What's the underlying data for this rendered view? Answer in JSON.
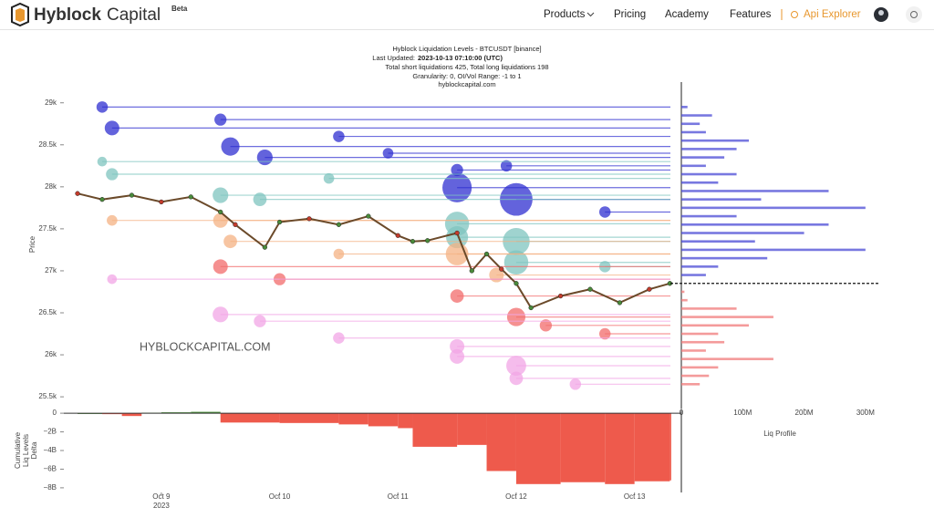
{
  "header": {
    "brand_1": "Hyblock",
    "brand_2": "Capital",
    "badge": "Beta",
    "nav": [
      "Products",
      "Pricing",
      "Academy",
      "Features"
    ],
    "api": "Api Explorer"
  },
  "chart_data": [
    {
      "type": "liquidation-levels",
      "title": "Hyblock Liquidation Levels - BTCUSDT [binance]",
      "last_updated_label": "Last Updated:",
      "last_updated": "2023-10-13 07:10:00 (UTC)",
      "totals": "Total short liquidations 425, Total long liquidations 198",
      "settings": "Granularity: 0, OI/Vol Range: -1 to 1",
      "source": "hyblockcapital.com",
      "watermark": "HYBLOCKCAPITAL.COM",
      "ylabel": "Price",
      "xlim": [
        "2023-10-08T07:00",
        "2023-10-13T09:30"
      ],
      "ylim": [
        25360,
        29160
      ],
      "yticks": [
        {
          "value": 25500,
          "label": "25.5k"
        },
        {
          "value": 26000,
          "label": "26k"
        },
        {
          "value": 26500,
          "label": "26.5k"
        },
        {
          "value": 27000,
          "label": "27k"
        },
        {
          "value": 27500,
          "label": "27.5k"
        },
        {
          "value": 28000,
          "label": "28k"
        },
        {
          "value": 28500,
          "label": "28.5k"
        },
        {
          "value": 29000,
          "label": "29k"
        }
      ],
      "current_price": 26850,
      "price": {
        "color": "#6b4a2a",
        "x": [
          "2023-10-08T07:00",
          "2023-10-08T12:00",
          "2023-10-08T18:00",
          "2023-10-09T00:00",
          "2023-10-09T06:00",
          "2023-10-09T12:00",
          "2023-10-09T15:00",
          "2023-10-09T21:00",
          "2023-10-10T00:00",
          "2023-10-10T06:00",
          "2023-10-10T12:00",
          "2023-10-10T18:00",
          "2023-10-11T00:00",
          "2023-10-11T03:00",
          "2023-10-11T06:00",
          "2023-10-11T12:00",
          "2023-10-11T15:00",
          "2023-10-11T18:00",
          "2023-10-11T21:00",
          "2023-10-12T00:00",
          "2023-10-12T03:00",
          "2023-10-12T09:00",
          "2023-10-12T15:00",
          "2023-10-12T21:00",
          "2023-10-13T03:00",
          "2023-10-13T07:10"
        ],
        "values": [
          27920,
          27850,
          27900,
          27820,
          27880,
          27700,
          27550,
          27280,
          27580,
          27620,
          27550,
          27650,
          27420,
          27350,
          27360,
          27450,
          27000,
          27200,
          27020,
          26850,
          26560,
          26700,
          26780,
          26620,
          26780,
          26850
        ]
      },
      "series": [
        {
          "color": "#2f2fd0",
          "x": [
            "2023-10-08T12:00",
            "2023-10-08T14:00",
            "2023-10-09T12:00",
            "2023-10-09T14:00",
            "2023-10-09T21:00",
            "2023-10-10T12:00",
            "2023-10-10T22:00",
            "2023-10-11T12:00",
            "2023-10-11T12:00",
            "2023-10-11T22:00",
            "2023-10-12T00:00",
            "2023-10-12T18:00"
          ],
          "values": [
            28950,
            28700,
            28800,
            28480,
            28350,
            28600,
            28400,
            28200,
            27990,
            28250,
            27850,
            27700
          ],
          "sizes": [
            5,
            10,
            6,
            18,
            12,
            5,
            4,
            6,
            55,
            5,
            70,
            5
          ]
        },
        {
          "color": "#7fc4bf",
          "x": [
            "2023-10-08T12:00",
            "2023-10-08T14:00",
            "2023-10-09T12:00",
            "2023-10-09T20:00",
            "2023-10-10T10:00",
            "2023-10-11T12:00",
            "2023-10-11T12:00",
            "2023-10-12T00:00",
            "2023-10-12T00:00",
            "2023-10-12T18:00"
          ],
          "values": [
            28300,
            28150,
            27900,
            27850,
            28100,
            27560,
            27400,
            27350,
            27100,
            27050
          ],
          "sizes": [
            3,
            6,
            12,
            8,
            4,
            35,
            28,
            45,
            35,
            5
          ]
        },
        {
          "color": "#f4b183",
          "x": [
            "2023-10-08T14:00",
            "2023-10-09T12:00",
            "2023-10-09T14:00",
            "2023-10-10T12:00",
            "2023-10-11T12:00",
            "2023-10-11T20:00"
          ],
          "values": [
            27600,
            27600,
            27350,
            27200,
            27200,
            26950
          ],
          "sizes": [
            4,
            10,
            8,
            4,
            30,
            10
          ]
        },
        {
          "color": "#f26b6b",
          "x": [
            "2023-10-09T12:00",
            "2023-10-10T00:00",
            "2023-10-11T12:00",
            "2023-10-12T00:00",
            "2023-10-12T06:00",
            "2023-10-12T18:00"
          ],
          "values": [
            27050,
            26900,
            26700,
            26450,
            26350,
            26250
          ],
          "sizes": [
            10,
            6,
            8,
            18,
            6,
            5
          ]
        },
        {
          "color": "#f2a6e6",
          "x": [
            "2023-10-08T14:00",
            "2023-10-09T12:00",
            "2023-10-09T20:00",
            "2023-10-10T12:00",
            "2023-10-11T12:00",
            "2023-10-11T12:00",
            "2023-10-12T00:00",
            "2023-10-12T00:00",
            "2023-10-12T12:00"
          ],
          "values": [
            26900,
            26480,
            26400,
            26200,
            26100,
            25980,
            25870,
            25720,
            25650
          ],
          "sizes": [
            3,
            12,
            6,
            5,
            10,
            10,
            22,
            8,
            5
          ]
        }
      ]
    },
    {
      "type": "hbar",
      "xlabel": "Liq Profile",
      "ylim": [
        25360,
        29160
      ],
      "xlim": [
        0,
        324000000
      ],
      "xticks": [
        0,
        {
          "value": 100000000,
          "label": "100M"
        },
        {
          "value": 200000000,
          "label": "200M"
        },
        {
          "value": 300000000,
          "label": "300M"
        }
      ],
      "categories": [
        25650,
        25750,
        25850,
        25950,
        26050,
        26150,
        26250,
        26350,
        26450,
        26550,
        26650,
        26750,
        26950,
        27050,
        27150,
        27250,
        27350,
        27450,
        27550,
        27650,
        27750,
        27850,
        27950,
        28050,
        28150,
        28250,
        28350,
        28450,
        28550,
        28650,
        28750,
        28850,
        28950
      ],
      "series": [
        {
          "color": "#4b4bd6",
          "values": [
            null,
            null,
            null,
            null,
            null,
            null,
            null,
            null,
            null,
            null,
            null,
            null,
            40000000,
            60000000,
            140000000,
            300000000,
            120000000,
            200000000,
            240000000,
            90000000,
            300000000,
            130000000,
            240000000,
            60000000,
            90000000,
            40000000,
            70000000,
            90000000,
            110000000,
            40000000,
            30000000,
            50000000,
            10000000
          ]
        },
        {
          "color": "#f07a7a",
          "values": [
            30000000,
            45000000,
            60000000,
            150000000,
            40000000,
            70000000,
            60000000,
            110000000,
            150000000,
            90000000,
            10000000,
            5000000,
            null,
            null,
            null,
            null,
            null,
            null,
            null,
            null,
            null,
            null,
            null,
            null,
            null,
            null,
            null,
            null,
            null,
            null,
            null,
            null,
            null
          ]
        }
      ]
    },
    {
      "type": "delta-area",
      "ylabel": [
        "Cumulative",
        "Liq Levels",
        "Delta"
      ],
      "xlim": [
        "2023-10-08T07:00",
        "2023-10-13T09:30"
      ],
      "ylim": [
        -8500000000,
        500000000
      ],
      "yticks": [
        0,
        {
          "value": -2000000000,
          "label": "−2B"
        },
        {
          "value": -4000000000,
          "label": "−4B"
        },
        {
          "value": -6000000000,
          "label": "−6B"
        },
        {
          "value": -8000000000,
          "label": "−8B"
        }
      ],
      "xticks": [
        {
          "value": "2023-10-09",
          "label": "Oct 9"
        },
        {
          "value": "2023-10-10",
          "label": "Oct 10"
        },
        {
          "value": "2023-10-11",
          "label": "Oct 11"
        },
        {
          "value": "2023-10-12",
          "label": "Oct 12"
        },
        {
          "value": "2023-10-13",
          "label": "Oct 13"
        }
      ],
      "x_year_label": "2023",
      "positive_color": "#4c8f3c",
      "negative_color": "#ee5a4c",
      "x": [
        "2023-10-08T07:00",
        "2023-10-08T12:00",
        "2023-10-08T16:00",
        "2023-10-08T20:00",
        "2023-10-09T00:00",
        "2023-10-09T06:00",
        "2023-10-09T12:00",
        "2023-10-10T00:00",
        "2023-10-10T12:00",
        "2023-10-10T18:00",
        "2023-10-11T00:00",
        "2023-10-11T03:00",
        "2023-10-11T12:00",
        "2023-10-11T18:00",
        "2023-10-12T00:00",
        "2023-10-12T09:00",
        "2023-10-12T18:00",
        "2023-10-13T00:00",
        "2023-10-13T07:10"
      ],
      "values": [
        0,
        -100000000,
        -300000000,
        50000000,
        100000000,
        150000000,
        -1000000000,
        -1050000000,
        -1200000000,
        -1400000000,
        -1600000000,
        -3600000000,
        -3400000000,
        -6200000000,
        -7600000000,
        -7400000000,
        -7600000000,
        -7300000000,
        -7200000000
      ]
    }
  ]
}
